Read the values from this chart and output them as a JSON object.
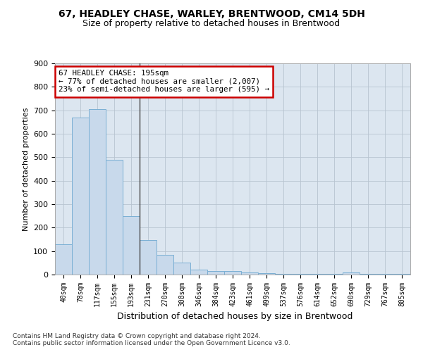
{
  "title1": "67, HEADLEY CHASE, WARLEY, BRENTWOOD, CM14 5DH",
  "title2": "Size of property relative to detached houses in Brentwood",
  "xlabel": "Distribution of detached houses by size in Brentwood",
  "ylabel": "Number of detached properties",
  "footnote1": "Contains HM Land Registry data © Crown copyright and database right 2024.",
  "footnote2": "Contains public sector information licensed under the Open Government Licence v3.0.",
  "bar_labels": [
    "40sqm",
    "78sqm",
    "117sqm",
    "155sqm",
    "193sqm",
    "231sqm",
    "270sqm",
    "308sqm",
    "346sqm",
    "384sqm",
    "423sqm",
    "461sqm",
    "499sqm",
    "537sqm",
    "576sqm",
    "614sqm",
    "652sqm",
    "690sqm",
    "729sqm",
    "767sqm",
    "805sqm"
  ],
  "bar_values": [
    130,
    670,
    705,
    490,
    250,
    148,
    85,
    50,
    20,
    15,
    15,
    10,
    5,
    3,
    3,
    3,
    2,
    10,
    2,
    2,
    2
  ],
  "bar_color": "#c8d9eb",
  "bar_edge_color": "#7aafd4",
  "background_color": "#ffffff",
  "plot_bg_color": "#dce6f0",
  "grid_color": "#b8c4d0",
  "annotation_text": "67 HEADLEY CHASE: 195sqm\n← 77% of detached houses are smaller (2,007)\n23% of semi-detached houses are larger (595) →",
  "annotation_box_color": "#ffffff",
  "annotation_box_edge": "#cc0000",
  "ylim": [
    0,
    900
  ],
  "yticks": [
    0,
    100,
    200,
    300,
    400,
    500,
    600,
    700,
    800,
    900
  ]
}
